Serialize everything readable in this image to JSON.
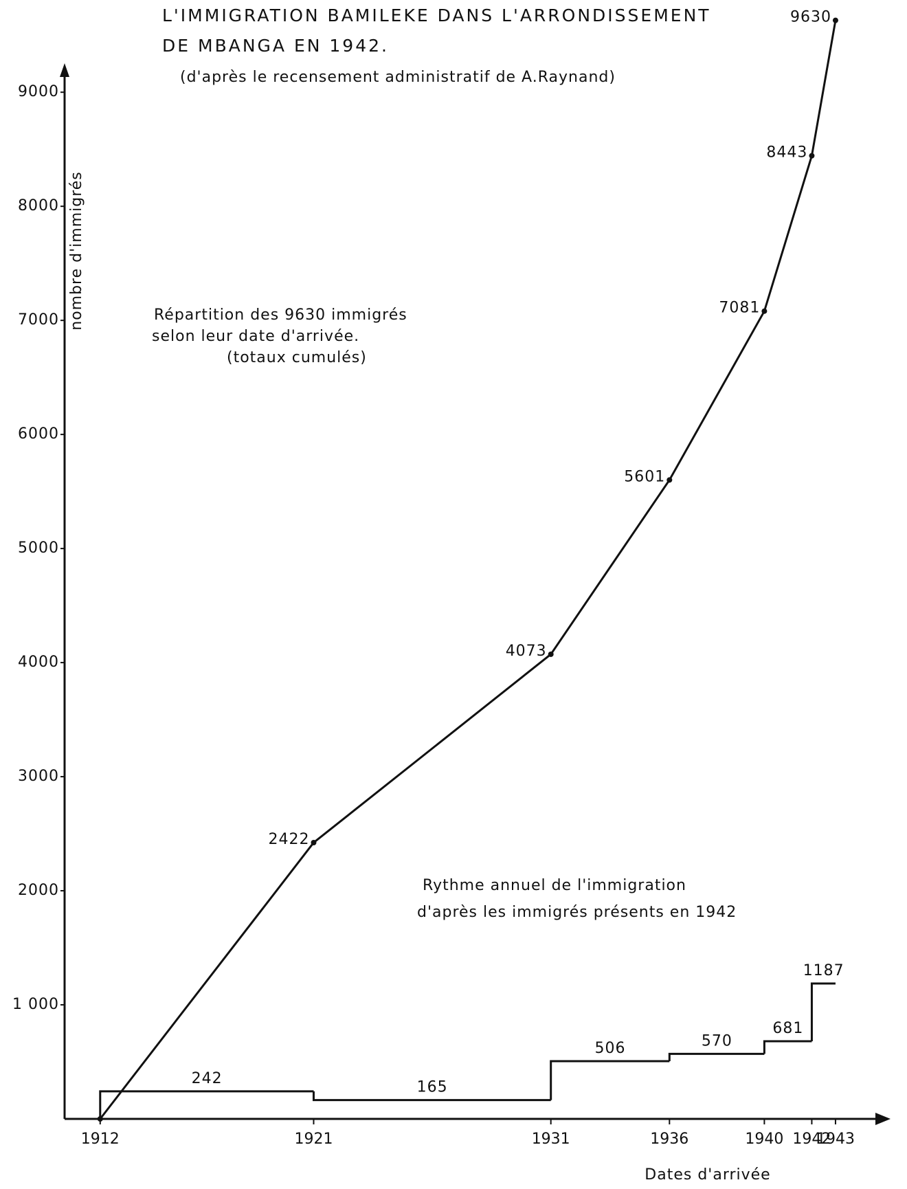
{
  "chart_data": [
    {
      "type": "line",
      "title": [
        "L'IMMIGRATION BAMILEKE DANS L'ARRONDISSEMENT",
        "DE MBANGA EN 1942."
      ],
      "subtitle": "(d'après le recensement administratif de A.Raynand)",
      "ylabel": "nombre d'immigrés",
      "xlabel": "Dates d'arrivée",
      "annotation": [
        "Répartition des 9630 immigrés",
        "selon leur date d'arrivée.",
        "(totaux cumulés)"
      ],
      "x": [
        1912,
        1921,
        1931,
        1936,
        1940,
        1942,
        1943
      ],
      "values": [
        0,
        2422,
        4073,
        5601,
        7081,
        8443,
        9630
      ],
      "value_labels": [
        null,
        "2422",
        "4073",
        "5601",
        "7081",
        "8443",
        "9630"
      ],
      "color": "#111111",
      "xlim": [
        1910.5,
        1945
      ],
      "xticks": [
        1912,
        1921,
        1931,
        1936,
        1940,
        1942,
        1943
      ],
      "ylim": [
        0,
        9700
      ],
      "yticks": [
        {
          "value": 1000,
          "label": "1 000"
        },
        2000,
        3000,
        4000,
        5000,
        6000,
        7000,
        8000,
        9000
      ]
    },
    {
      "type": "histogram",
      "annotation": [
        "Rythme annuel de l'immigration",
        "d'après les immigrés présents en 1942"
      ],
      "bins": [
        1912,
        1921,
        1931,
        1936,
        1940,
        1942,
        1943
      ],
      "values": [
        242,
        165,
        506,
        570,
        681,
        1187
      ],
      "color": "#111111"
    }
  ]
}
